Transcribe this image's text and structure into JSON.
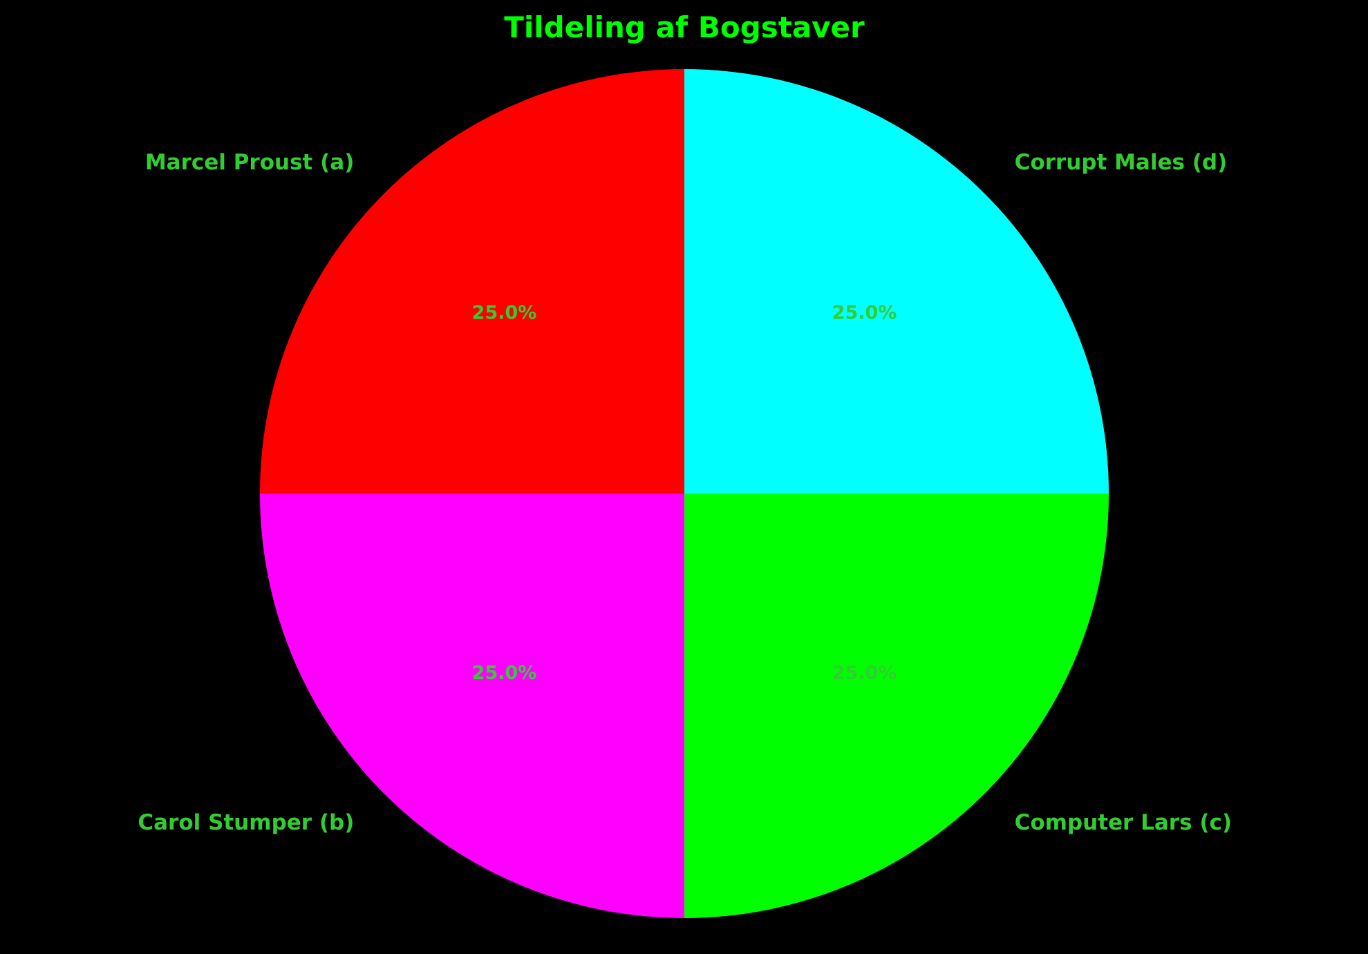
{
  "chart_data": {
    "type": "pie",
    "title": "Tildeling af Bogstaver",
    "title_color": "#00ff00",
    "label_color": "#32cd32",
    "start_angle_deg": 90,
    "direction": "counterclockwise",
    "slices": [
      {
        "label": "Marcel Proust (a)",
        "value": 25.0,
        "pct_label": "25.0%",
        "color": "#ff0000"
      },
      {
        "label": "Carol Stumper (b)",
        "value": 25.0,
        "pct_label": "25.0%",
        "color": "#ff00ff"
      },
      {
        "label": "Computer Lars (c)",
        "value": 25.0,
        "pct_label": "25.0%",
        "color": "#00ff00"
      },
      {
        "label": "Corrupt Males (d)",
        "value": 25.0,
        "pct_label": "25.0%",
        "color": "#00ffff"
      }
    ]
  }
}
